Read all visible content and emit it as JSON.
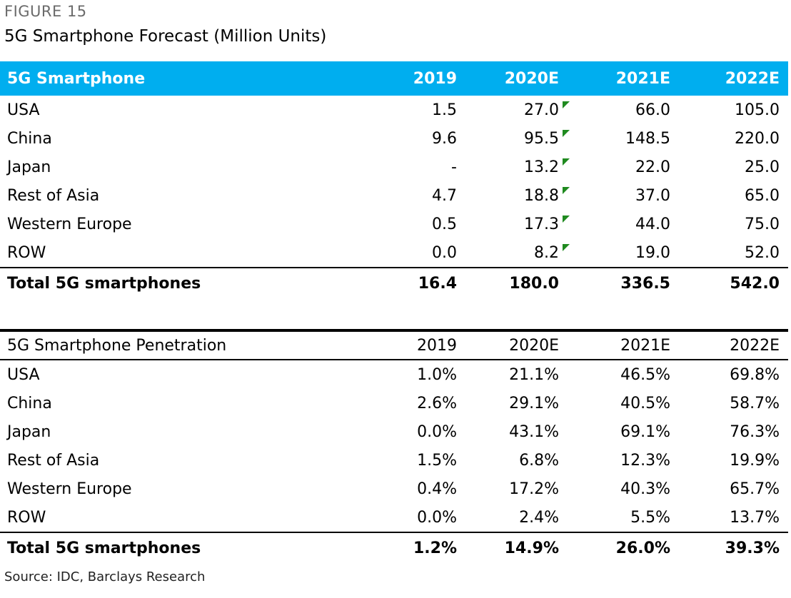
{
  "figure_label": "FIGURE 15",
  "title": "5G Smartphone Forecast (Million Units)",
  "source": "Source: IDC, Barclays Research",
  "colors": {
    "header_bg": "#00aeef",
    "flag": "#1f8a1f"
  },
  "chart_data": [
    {
      "type": "table",
      "header": [
        "5G Smartphone",
        "2019",
        "2020E",
        "2021E",
        "2022E"
      ],
      "rows": [
        [
          "USA",
          "1.5",
          "27.0",
          "66.0",
          "105.0"
        ],
        [
          "China",
          "9.6",
          "95.5",
          "148.5",
          "220.0"
        ],
        [
          "Japan",
          "-",
          "13.2",
          "22.0",
          "25.0"
        ],
        [
          "Rest of Asia",
          "4.7",
          "18.8",
          "37.0",
          "65.0"
        ],
        [
          "Western Europe",
          "0.5",
          "17.3",
          "44.0",
          "75.0"
        ],
        [
          "ROW",
          "0.0",
          "8.2",
          "19.0",
          "52.0"
        ]
      ],
      "total": [
        "Total 5G smartphones",
        "16.4",
        "180.0",
        "336.5",
        "542.0"
      ]
    },
    {
      "type": "table",
      "header": [
        "5G Smartphone Penetration",
        "2019",
        "2020E",
        "2021E",
        "2022E"
      ],
      "rows": [
        [
          "USA",
          "1.0%",
          "21.1%",
          "46.5%",
          "69.8%"
        ],
        [
          "China",
          "2.6%",
          "29.1%",
          "40.5%",
          "58.7%"
        ],
        [
          "Japan",
          "0.0%",
          "43.1%",
          "69.1%",
          "76.3%"
        ],
        [
          "Rest of Asia",
          "1.5%",
          "6.8%",
          "12.3%",
          "19.9%"
        ],
        [
          "Western Europe",
          "0.4%",
          "17.2%",
          "40.3%",
          "65.7%"
        ],
        [
          "ROW",
          "0.0%",
          "2.4%",
          "5.5%",
          "13.7%"
        ]
      ],
      "total": [
        "Total 5G smartphones",
        "1.2%",
        "14.9%",
        "26.0%",
        "39.3%"
      ]
    }
  ]
}
